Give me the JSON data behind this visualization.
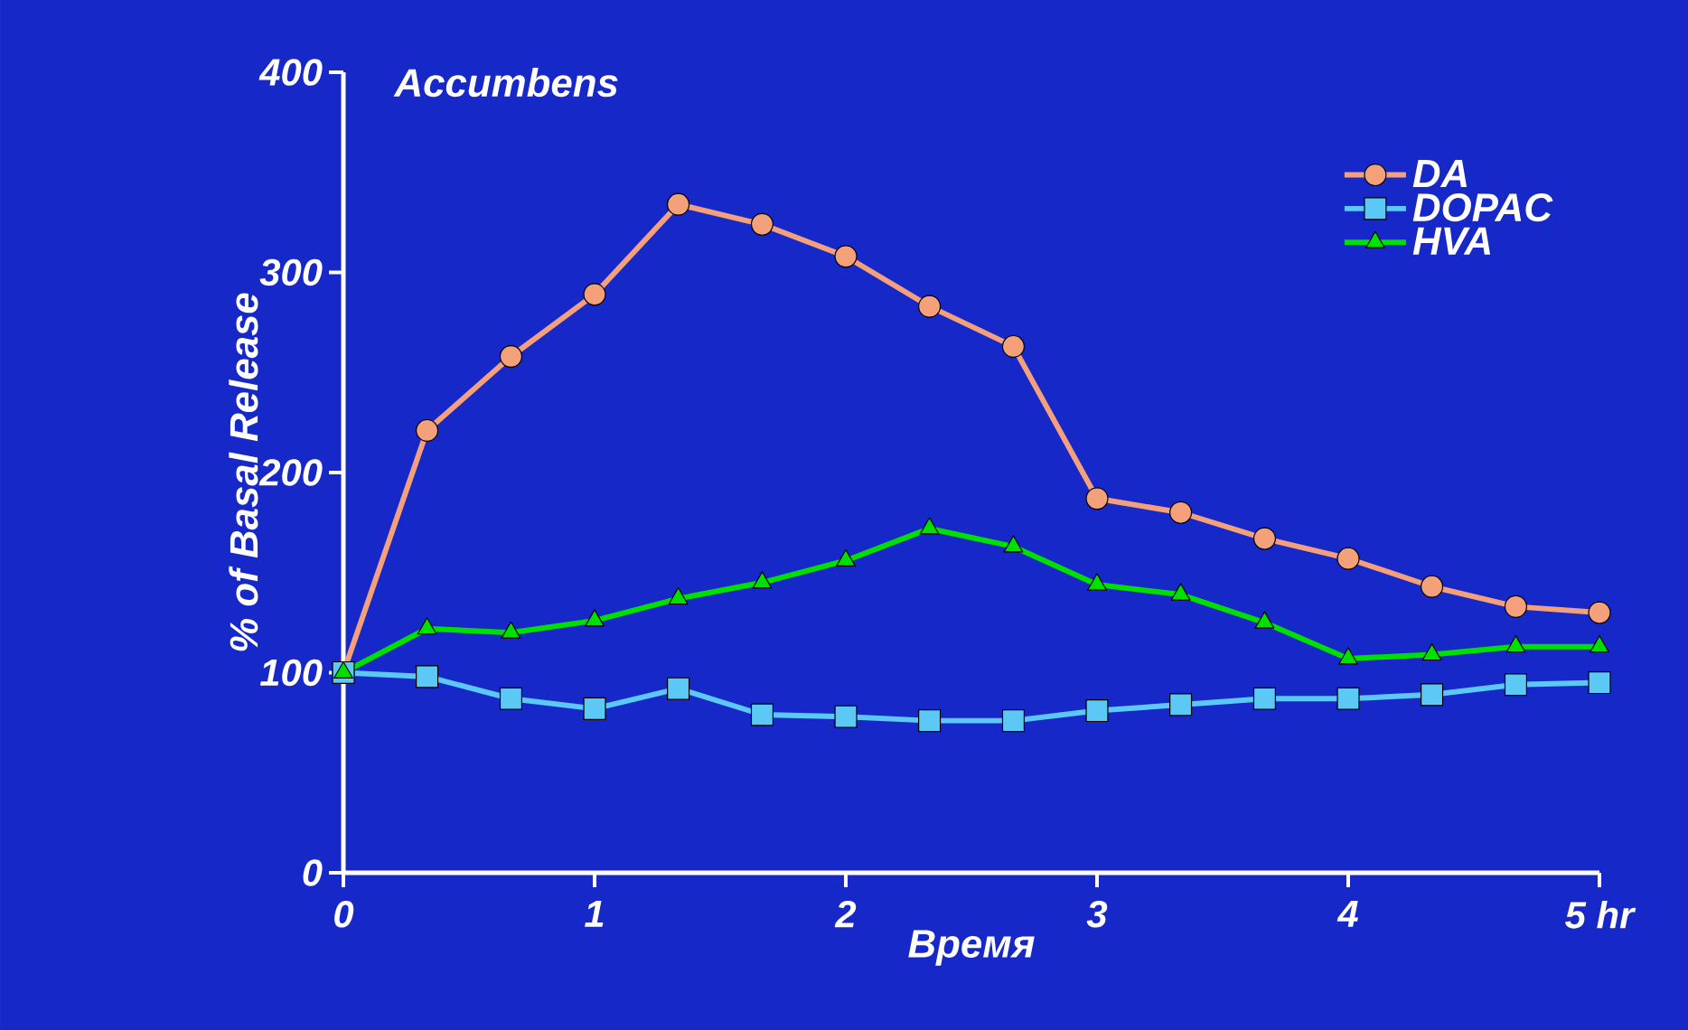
{
  "chart_data": {
    "type": "line",
    "title": "Accumbens",
    "xlabel": "Время",
    "ylabel": "% of Basal Release",
    "x": [
      0,
      0.333,
      0.667,
      1,
      1.333,
      1.667,
      2,
      2.333,
      2.667,
      3,
      3.333,
      3.667,
      4,
      4.333,
      4.667,
      5
    ],
    "series": [
      {
        "name": "DA",
        "color": "#f4a07a",
        "marker": "circle",
        "values": [
          100,
          221,
          258,
          289,
          334,
          324,
          308,
          283,
          263,
          187,
          180,
          167,
          157,
          143,
          133,
          130
        ]
      },
      {
        "name": "DOPAC",
        "color": "#5bc8f5",
        "marker": "square",
        "values": [
          100,
          98,
          87,
          82,
          92,
          79,
          78,
          76,
          76,
          81,
          84,
          87,
          87,
          89,
          94,
          95
        ]
      },
      {
        "name": "HVA",
        "color": "#00e000",
        "marker": "triangle",
        "values": [
          100,
          122,
          120,
          126,
          137,
          145,
          156,
          172,
          163,
          144,
          139,
          125,
          107,
          109,
          113,
          113
        ]
      }
    ],
    "xlim": [
      0,
      5
    ],
    "xticks": [
      0,
      1,
      2,
      3,
      4,
      {
        "value": 5,
        "label": "5 hr"
      }
    ],
    "ylim": [
      0,
      400
    ],
    "yticks": [
      0,
      100,
      200,
      300,
      400
    ],
    "grid": false,
    "legend": "top right",
    "line_style": "solid"
  }
}
